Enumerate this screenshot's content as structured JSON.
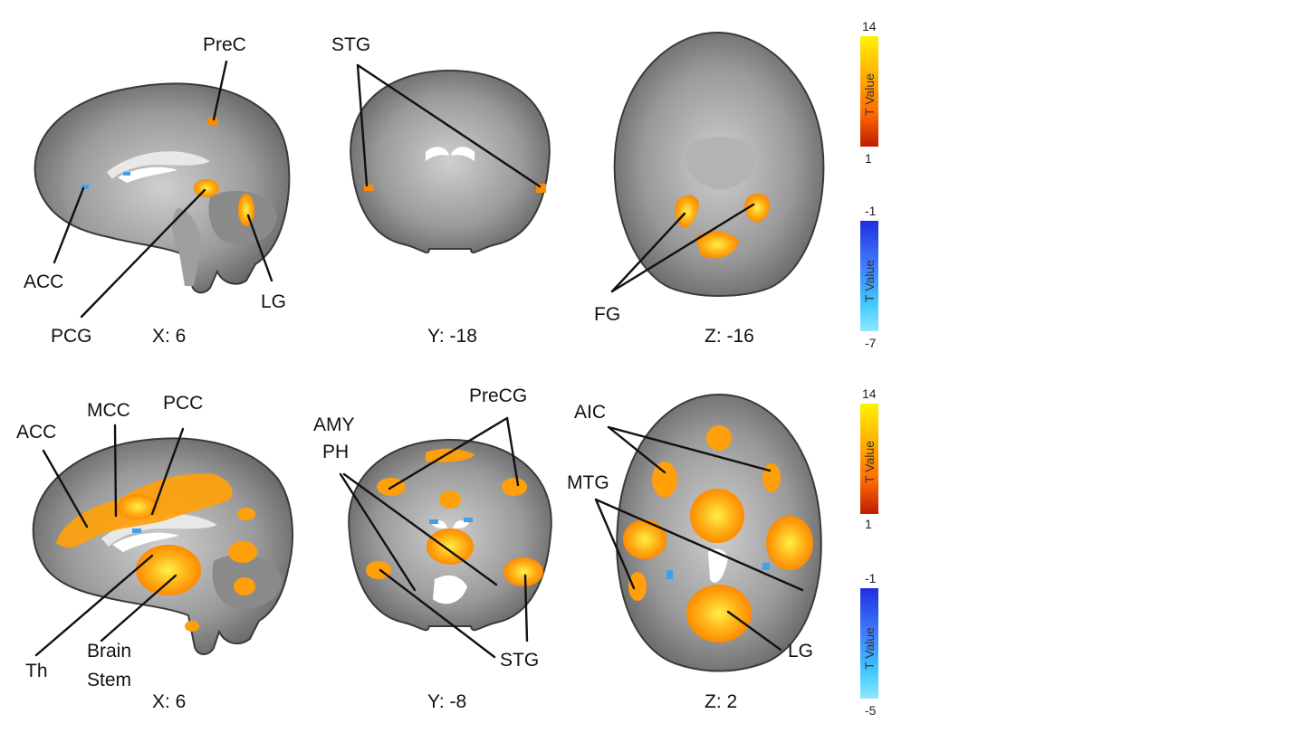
{
  "rows": [
    {
      "colorbars": [
        {
          "max": "14",
          "min": "1",
          "title": "T Value"
        },
        {
          "max": "-1",
          "min": "-7",
          "title": "T Value"
        }
      ],
      "panels": [
        {
          "coord": "X: 6",
          "labels": [
            "PreC",
            "ACC",
            "PCG",
            "LG"
          ]
        },
        {
          "coord": "Y: -18",
          "labels": [
            "STG"
          ]
        },
        {
          "coord": "Z: -16",
          "labels": [
            "FG"
          ]
        }
      ]
    },
    {
      "colorbars": [
        {
          "max": "14",
          "min": "1",
          "title": "T Value"
        },
        {
          "max": "-1",
          "min": "-5",
          "title": "T Value"
        }
      ],
      "panels": [
        {
          "coord": "X: 6",
          "labels": [
            "ACC",
            "MCC",
            "PCC",
            "Th",
            "Brain",
            "Stem"
          ]
        },
        {
          "coord": "Y: -8",
          "labels": [
            "AMY",
            "PH",
            "PreCG",
            "STG"
          ]
        },
        {
          "coord": "Z: 2",
          "labels": [
            "AIC",
            "MTG",
            "LG"
          ]
        }
      ]
    }
  ],
  "colors": {
    "positive_scale": [
      "#fff200",
      "#ffb000",
      "#ff6a00",
      "#c01a00"
    ],
    "negative_scale": [
      "#1e2fe0",
      "#3f7bff",
      "#40c8ff",
      "#8fe8ff"
    ],
    "activation": "#ff9f0a",
    "deactivation": "#3fa2e8"
  }
}
